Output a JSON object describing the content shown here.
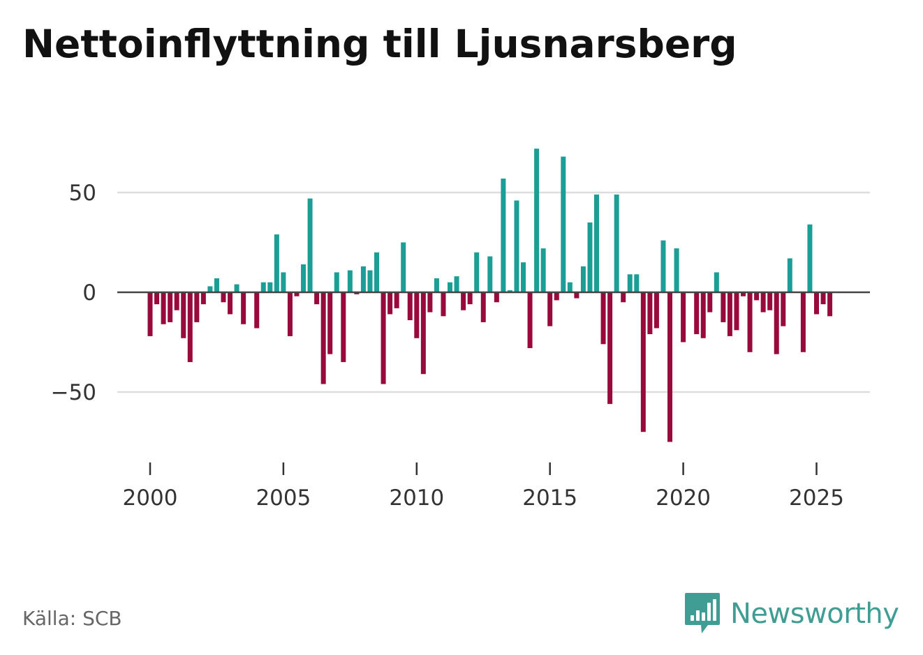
{
  "title": "Nettoinflyttning till Ljusnarsberg",
  "source": "Källa: SCB",
  "brand": {
    "name": "Newsworthy",
    "icon": "bar-chart-speech-bubble-icon",
    "color": "#3f9d94"
  },
  "colors": {
    "positive": "#1a9e96",
    "negative": "#980a3c",
    "zero_line": "#444444",
    "grid": "#dddddd",
    "axis": "#333333"
  },
  "chart_data": {
    "type": "bar",
    "title": "Nettoinflyttning till Ljusnarsberg",
    "xlabel": "",
    "ylabel": "",
    "frequency": "quarterly",
    "x_start": 2000.0,
    "x_step": 0.25,
    "xlim": [
      1999.3,
      2027.3
    ],
    "ylim": [
      -82,
      78
    ],
    "yticks": [
      -50,
      0,
      50
    ],
    "ytick_labels": [
      "−50",
      "0",
      "50"
    ],
    "xticks": [
      2000,
      2005,
      2010,
      2015,
      2020,
      2025
    ],
    "xtick_labels": [
      "2000",
      "2005",
      "2010",
      "2015",
      "2020",
      "2025"
    ],
    "grid": true,
    "values": [
      -22,
      -6,
      -16,
      -15,
      -9,
      -23,
      -35,
      -15,
      -6,
      3,
      7,
      -5,
      -11,
      4,
      -16,
      0,
      -18,
      5,
      5,
      29,
      10,
      -22,
      -2,
      14,
      47,
      -6,
      -46,
      -31,
      10,
      -35,
      11,
      -1,
      13,
      11,
      20,
      -46,
      -11,
      -8,
      25,
      -14,
      -23,
      -41,
      -10,
      7,
      -12,
      5,
      8,
      -9,
      -6,
      20,
      -15,
      18,
      -5,
      57,
      1,
      46,
      15,
      -28,
      72,
      22,
      -17,
      -4,
      68,
      5,
      -3,
      13,
      35,
      49,
      -26,
      -56,
      49,
      -5,
      9,
      9,
      -70,
      -21,
      -18,
      26,
      -75,
      22,
      -25,
      0,
      -21,
      -23,
      -10,
      10,
      -15,
      -22,
      -19,
      -2,
      -30,
      -4,
      -10,
      -9,
      -31,
      -17,
      17,
      0,
      -30,
      34,
      -11,
      -6,
      -12
    ]
  }
}
